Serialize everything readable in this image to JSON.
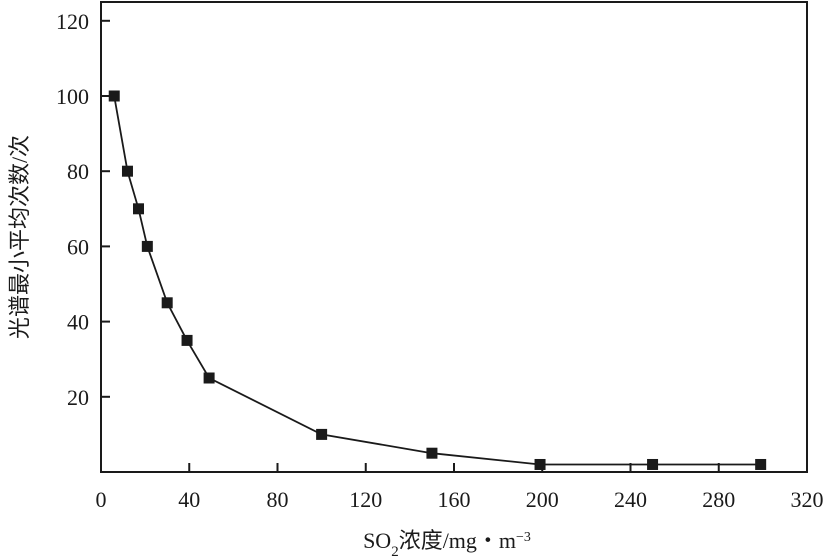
{
  "chart_data": {
    "type": "line",
    "title": "",
    "xlabel": {
      "prefix": "SO",
      "subscript": "2",
      "suffix": "浓度/mg・m",
      "superscript": "−3"
    },
    "ylabel": "光谱最小平均次数/次",
    "xlim": [
      0,
      320
    ],
    "ylim": [
      0,
      125
    ],
    "xticks": [
      0,
      40,
      80,
      120,
      160,
      200,
      240,
      280,
      320
    ],
    "yticks": [
      20,
      40,
      60,
      80,
      100,
      120
    ],
    "grid": false,
    "legend": "none",
    "marker": "square",
    "line_color": "#1a1a1a",
    "x": [
      6,
      12,
      17,
      21,
      30,
      39,
      49,
      100,
      150,
      199,
      250,
      299
    ],
    "y": [
      100,
      80,
      70,
      60,
      45,
      35,
      25,
      10,
      5,
      2,
      2,
      2
    ]
  }
}
